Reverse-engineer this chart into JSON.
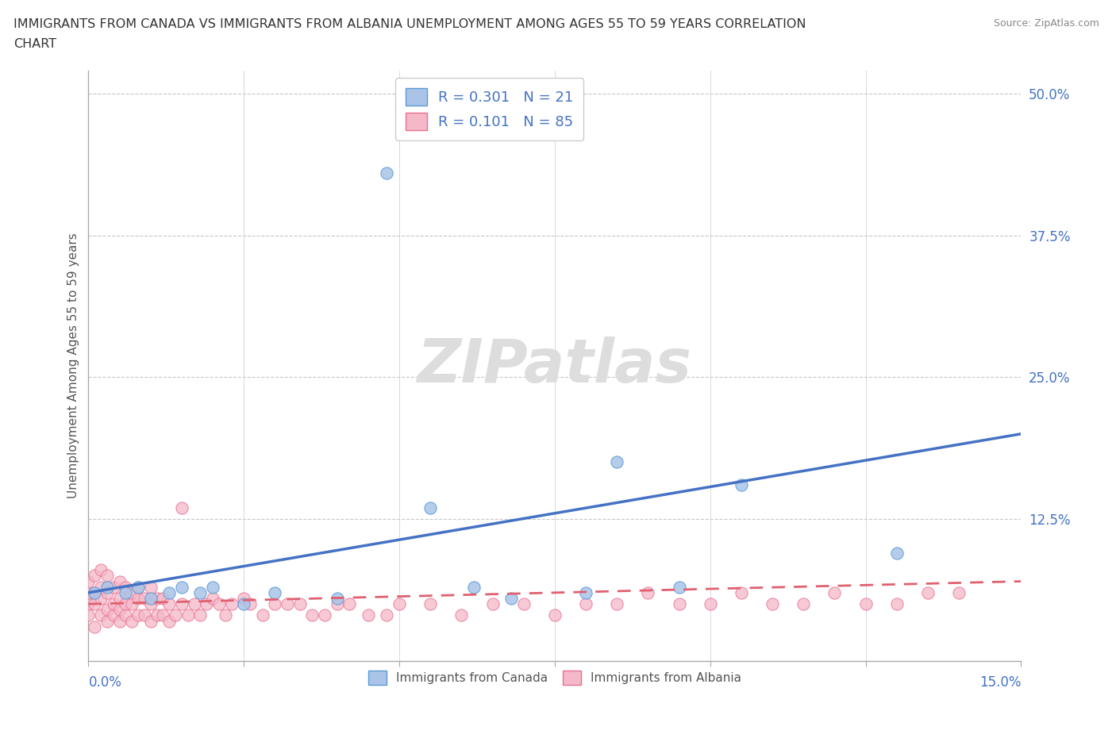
{
  "title_line1": "IMMIGRANTS FROM CANADA VS IMMIGRANTS FROM ALBANIA UNEMPLOYMENT AMONG AGES 55 TO 59 YEARS CORRELATION",
  "title_line2": "CHART",
  "source": "Source: ZipAtlas.com",
  "ylabel": "Unemployment Among Ages 55 to 59 years",
  "canada_R": 0.301,
  "canada_N": 21,
  "albania_R": 0.101,
  "albania_N": 85,
  "canada_color_fill": "#aac4e8",
  "canada_color_edge": "#5b9bd5",
  "albania_color_fill": "#f4b8c8",
  "albania_color_edge": "#e87090",
  "canada_line_color": "#4472c4",
  "albania_line_color": "#e06070",
  "background_color": "#ffffff",
  "xlim": [
    0.0,
    0.15
  ],
  "ylim": [
    0.0,
    0.52
  ],
  "yticks": [
    0.0,
    0.125,
    0.25,
    0.375,
    0.5
  ],
  "ytick_labels": [
    "",
    "12.5%",
    "25.0%",
    "37.5%",
    "50.0%"
  ],
  "canada_x": [
    0.001,
    0.003,
    0.006,
    0.008,
    0.01,
    0.013,
    0.015,
    0.018,
    0.02,
    0.025,
    0.03,
    0.04,
    0.048,
    0.055,
    0.062,
    0.068,
    0.08,
    0.085,
    0.095,
    0.105,
    0.13
  ],
  "canada_y": [
    0.06,
    0.065,
    0.06,
    0.065,
    0.055,
    0.06,
    0.065,
    0.06,
    0.065,
    0.05,
    0.06,
    0.055,
    0.43,
    0.135,
    0.065,
    0.055,
    0.06,
    0.175,
    0.065,
    0.155,
    0.095
  ],
  "albania_x": [
    0.0,
    0.0,
    0.0,
    0.0,
    0.001,
    0.001,
    0.001,
    0.001,
    0.002,
    0.002,
    0.002,
    0.002,
    0.003,
    0.003,
    0.003,
    0.003,
    0.004,
    0.004,
    0.004,
    0.005,
    0.005,
    0.005,
    0.005,
    0.006,
    0.006,
    0.006,
    0.007,
    0.007,
    0.007,
    0.008,
    0.008,
    0.008,
    0.009,
    0.009,
    0.01,
    0.01,
    0.01,
    0.011,
    0.011,
    0.012,
    0.012,
    0.013,
    0.013,
    0.014,
    0.015,
    0.015,
    0.016,
    0.017,
    0.018,
    0.019,
    0.02,
    0.021,
    0.022,
    0.023,
    0.025,
    0.026,
    0.028,
    0.03,
    0.032,
    0.034,
    0.036,
    0.038,
    0.04,
    0.042,
    0.045,
    0.048,
    0.05,
    0.055,
    0.06,
    0.065,
    0.07,
    0.075,
    0.08,
    0.085,
    0.09,
    0.095,
    0.1,
    0.105,
    0.11,
    0.115,
    0.12,
    0.125,
    0.13,
    0.135,
    0.14
  ],
  "albania_y": [
    0.04,
    0.05,
    0.06,
    0.07,
    0.03,
    0.05,
    0.06,
    0.075,
    0.04,
    0.055,
    0.065,
    0.08,
    0.035,
    0.045,
    0.06,
    0.075,
    0.04,
    0.05,
    0.065,
    0.035,
    0.045,
    0.055,
    0.07,
    0.04,
    0.05,
    0.065,
    0.035,
    0.05,
    0.06,
    0.04,
    0.055,
    0.065,
    0.04,
    0.055,
    0.035,
    0.05,
    0.065,
    0.04,
    0.055,
    0.04,
    0.055,
    0.035,
    0.05,
    0.04,
    0.135,
    0.05,
    0.04,
    0.05,
    0.04,
    0.05,
    0.055,
    0.05,
    0.04,
    0.05,
    0.055,
    0.05,
    0.04,
    0.05,
    0.05,
    0.05,
    0.04,
    0.04,
    0.05,
    0.05,
    0.04,
    0.04,
    0.05,
    0.05,
    0.04,
    0.05,
    0.05,
    0.04,
    0.05,
    0.05,
    0.06,
    0.05,
    0.05,
    0.06,
    0.05,
    0.05,
    0.06,
    0.05,
    0.05,
    0.06,
    0.06
  ]
}
